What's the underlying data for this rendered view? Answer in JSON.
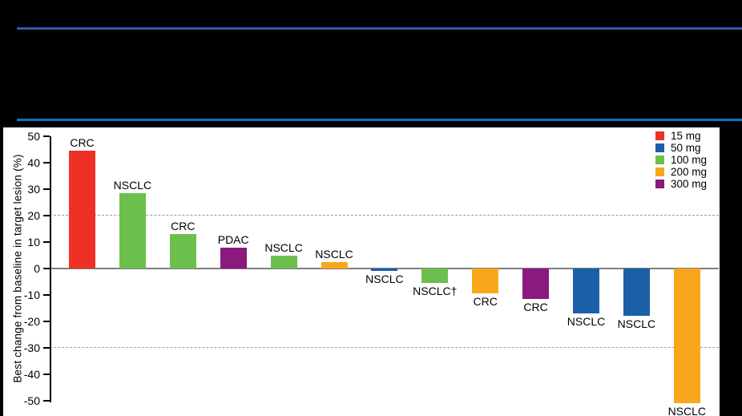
{
  "header": {
    "top_rule_color": "#2a5da7",
    "bottom_rule_color": "#0c76c0",
    "background": "#000000"
  },
  "chart_data": {
    "type": "bar",
    "title": "",
    "ylabel": "Best change from baseline in target lesion (%)",
    "ylim": [
      -55,
      50
    ],
    "yticks": [
      50,
      40,
      30,
      20,
      10,
      0,
      -10,
      -20,
      -30,
      -40,
      -50
    ],
    "reference_lines_dashed": [
      20,
      -30
    ],
    "zero_line": 0,
    "grid": "horizontal dashed at +20 and -30 only",
    "legend_position": "top-right",
    "legend": [
      {
        "label": "15 mg",
        "color": "#ee3124"
      },
      {
        "label": "50 mg",
        "color": "#1b5fa9"
      },
      {
        "label": "100 mg",
        "color": "#6cbf4c"
      },
      {
        "label": "200 mg",
        "color": "#faa61a"
      },
      {
        "label": "300 mg",
        "color": "#8b1a7e"
      }
    ],
    "bars": [
      {
        "label": "CRC",
        "dose": "15 mg",
        "value": 44.5
      },
      {
        "label": "NSCLC",
        "dose": "100 mg",
        "value": 28.5
      },
      {
        "label": "CRC",
        "dose": "100 mg",
        "value": 13
      },
      {
        "label": "PDAC",
        "dose": "300 mg",
        "value": 8
      },
      {
        "label": "NSCLC",
        "dose": "100 mg",
        "value": 5
      },
      {
        "label": "NSCLC",
        "dose": "200 mg",
        "value": 2.5
      },
      {
        "label": "NSCLC",
        "dose": "50 mg",
        "value": -1
      },
      {
        "label": "NSCLC†",
        "dose": "100 mg",
        "value": -5.5
      },
      {
        "label": "CRC",
        "dose": "200 mg",
        "value": -9.5
      },
      {
        "label": "CRC",
        "dose": "300 mg",
        "value": -11.5
      },
      {
        "label": "NSCLC",
        "dose": "50 mg",
        "value": -17
      },
      {
        "label": "NSCLC",
        "dose": "50 mg",
        "value": -18
      },
      {
        "label": "NSCLC",
        "dose": "200 mg",
        "value": -51
      }
    ]
  }
}
